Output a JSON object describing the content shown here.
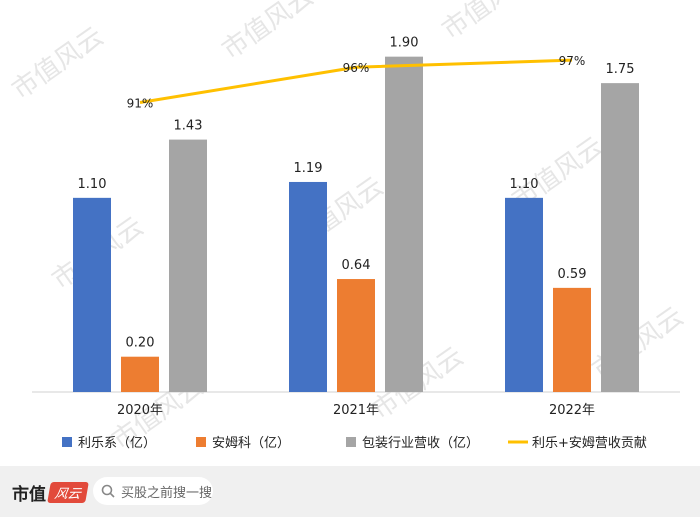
{
  "chart_data": {
    "type": "bar",
    "categories": [
      "2020年",
      "2021年",
      "2022年"
    ],
    "series": [
      {
        "name": "利乐系（亿）",
        "type": "bar",
        "color": "#4472c4",
        "values": [
          1.1,
          1.19,
          1.1
        ],
        "labels": [
          "1.10",
          "1.19",
          "1.10"
        ]
      },
      {
        "name": "安姆科（亿）",
        "type": "bar",
        "color": "#ed7d31",
        "values": [
          0.2,
          0.64,
          0.59
        ],
        "labels": [
          "0.20",
          "0.64",
          "0.59"
        ]
      },
      {
        "name": "包装行业营收（亿）",
        "type": "bar",
        "color": "#a5a5a5",
        "values": [
          1.43,
          1.9,
          1.75
        ],
        "labels": [
          "1.43",
          "1.90",
          "1.75"
        ]
      },
      {
        "name": "利乐+安姆营收贡献",
        "type": "line",
        "color": "#ffc000",
        "values": [
          91,
          96,
          97
        ],
        "labels": [
          "91%",
          "96%",
          "97%"
        ]
      }
    ],
    "ylim": [
      0,
      2.0
    ],
    "y2lim": [
      50,
      100
    ],
    "legend": "bottom",
    "grid": false
  },
  "watermark": "市值风云",
  "footer": {
    "brand": "市值",
    "brand_mark": "风云",
    "search_placeholder": "买股之前搜一搜"
  }
}
